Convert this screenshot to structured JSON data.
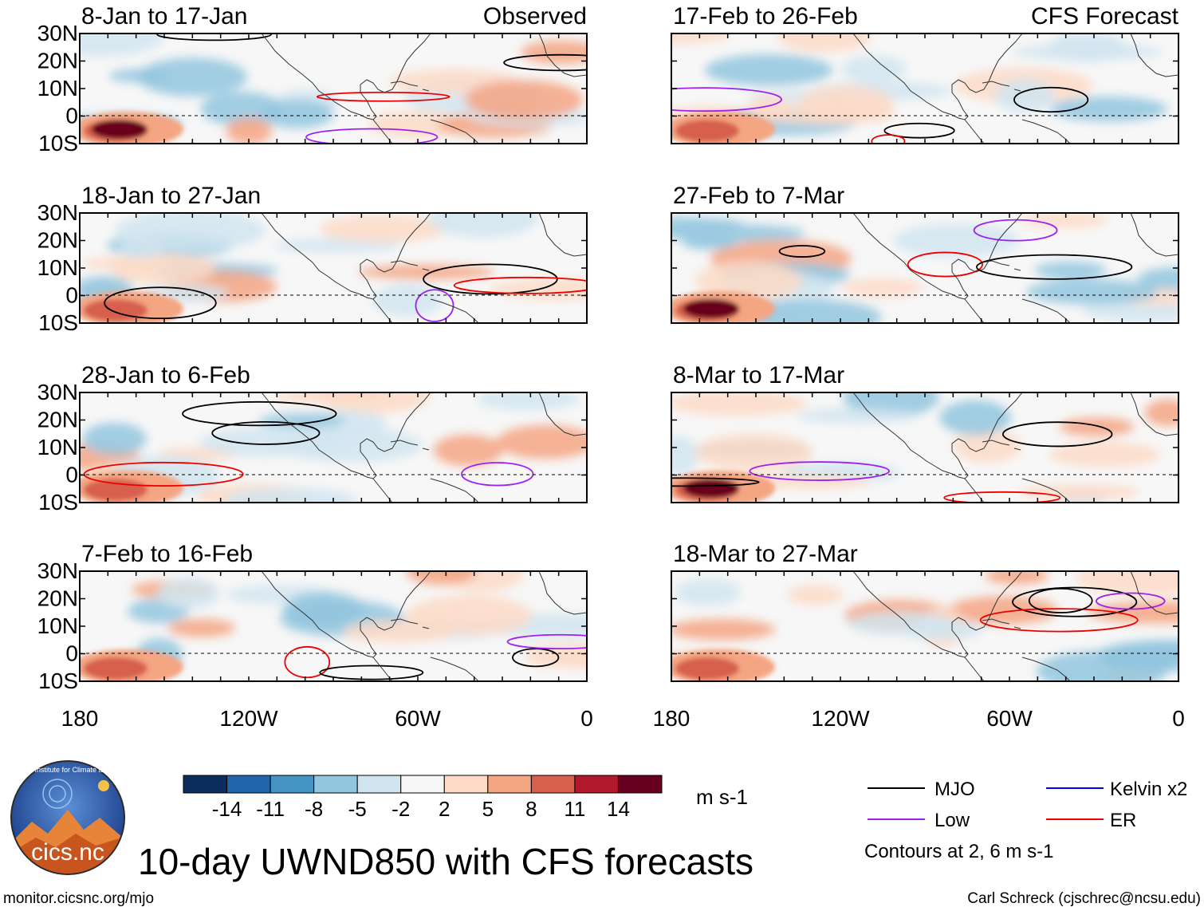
{
  "figure_title": "10-day UWND850 with CFS forecasts",
  "left_label": "Observed",
  "right_label": "CFS Forecast",
  "panels_left": [
    "8-Jan to 17-Jan",
    "18-Jan to 27-Jan",
    "28-Jan to 6-Feb",
    "7-Feb to 16-Feb"
  ],
  "panels_right": [
    "17-Feb to 26-Feb",
    "27-Feb to 7-Mar",
    "8-Mar to 17-Mar",
    "18-Mar to 27-Mar"
  ],
  "lat_ticks": [
    "30N",
    "20N",
    "10N",
    "0",
    "10S"
  ],
  "lon_ticks": [
    "180",
    "120W",
    "60W",
    "0"
  ],
  "colorbar": {
    "units": "m s-1",
    "levels": [
      "-14",
      "-11",
      "-8",
      "-5",
      "-2",
      "2",
      "5",
      "8",
      "11",
      "14"
    ],
    "colors": [
      "#0b2e5e",
      "#2166ac",
      "#4393c3",
      "#92c5de",
      "#d1e5f0",
      "#f7f7f7",
      "#fddbc7",
      "#f4a582",
      "#d6604d",
      "#b2182b",
      "#67001f"
    ]
  },
  "legend": {
    "items": [
      {
        "label": "MJO",
        "color": "#000000"
      },
      {
        "label": "Kelvin x2",
        "color": "#0000ee"
      },
      {
        "label": "Low",
        "color": "#a020f0"
      },
      {
        "label": "ER",
        "color": "#ee0000"
      }
    ],
    "note": "Contours at 2, 6 m s-1"
  },
  "logo_text": "cics.nc",
  "logo_ring_text": "Cooperative Institute for Climate and Satellites",
  "footer_left": "monitor.cicsnc.org/mjo",
  "footer_right": "Carl Schreck (cjschrec@ncsu.edu)"
}
